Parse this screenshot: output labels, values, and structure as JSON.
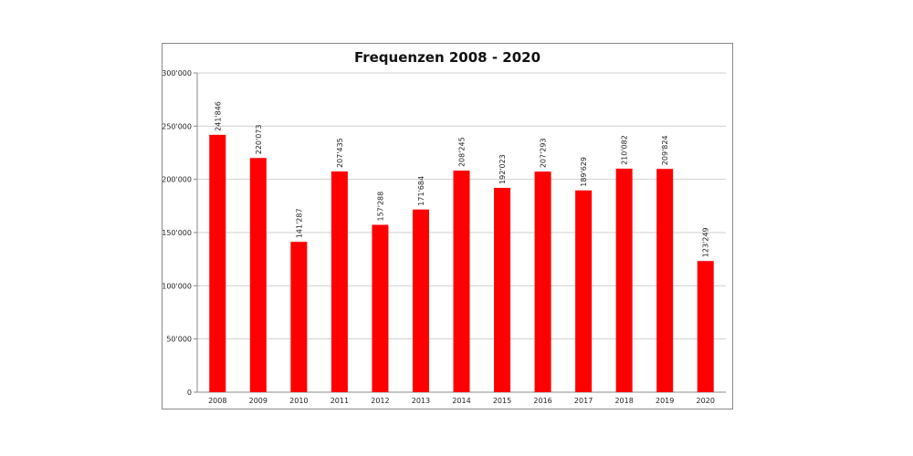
{
  "chart_data": {
    "type": "bar",
    "title": "Frequenzen 2008 - 2020",
    "xlabel": "",
    "ylabel": "",
    "categories": [
      "2008",
      "2009",
      "2010",
      "2011",
      "2012",
      "2013",
      "2014",
      "2015",
      "2016",
      "2017",
      "2018",
      "2019",
      "2020"
    ],
    "values": [
      241846,
      220073,
      141287,
      207435,
      157288,
      171684,
      208245,
      192023,
      207293,
      189629,
      210082,
      209824,
      123249
    ],
    "data_labels": [
      "241'846",
      "220'073",
      "141'287",
      "207'435",
      "157'288",
      "171'684",
      "208'245",
      "192'023",
      "207'293",
      "189'629",
      "210'082",
      "209'824",
      "123'249"
    ],
    "ylim": [
      0,
      300000
    ],
    "yticks": [
      0,
      50000,
      100000,
      150000,
      200000,
      250000,
      300000
    ],
    "ytick_labels": [
      "0",
      "50'000",
      "100'000",
      "150'000",
      "200'000",
      "250'000",
      "300'000"
    ],
    "grid": true,
    "legend": "none",
    "bar_color": "#ff0000"
  }
}
